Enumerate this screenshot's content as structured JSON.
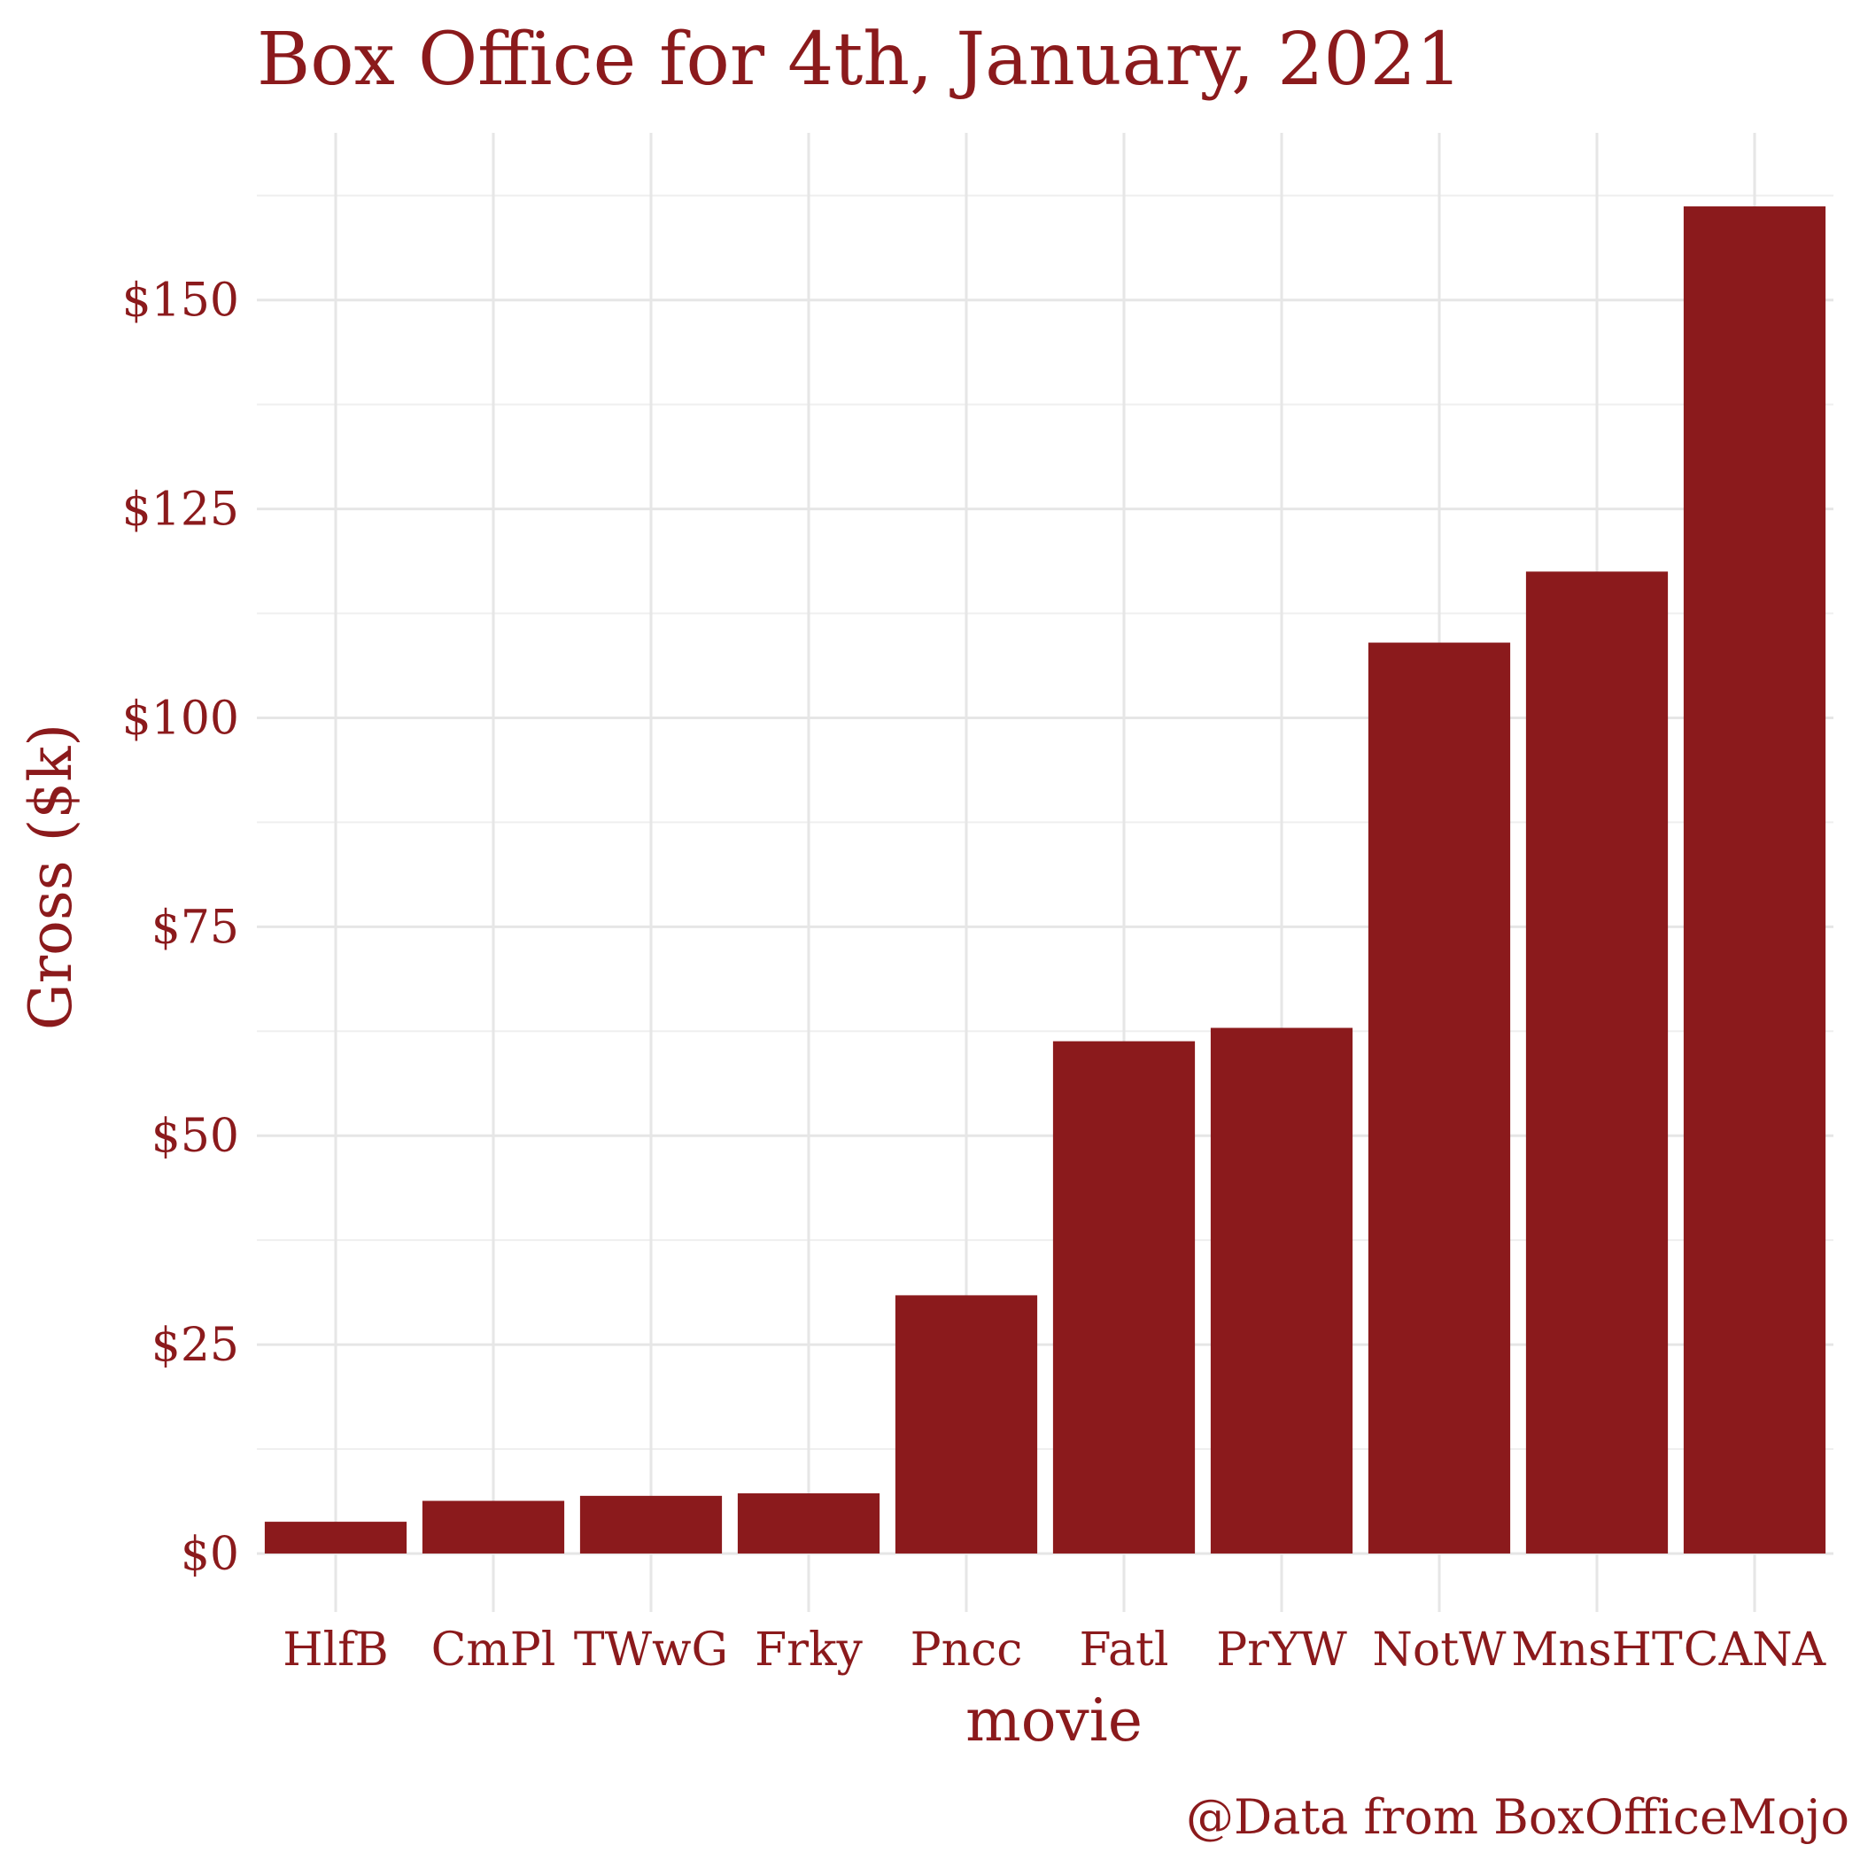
{
  "chart_data": {
    "type": "bar",
    "title": "Box Office for 4th, January, 2021",
    "xlabel": "movie",
    "ylabel": "Gross ($k)",
    "caption": "@Data from BoxOfficeMojo",
    "categories": [
      "HlfB",
      "CmPl",
      "TWwG",
      "Frky",
      "Pncc",
      "Fatl",
      "PrYW",
      "NotW",
      "MnsHT",
      "CANA"
    ],
    "values": [
      3.8,
      6.3,
      6.9,
      7.2,
      30.9,
      61.3,
      62.9,
      109.0,
      117.5,
      161.2
    ],
    "ylim": [
      -7,
      170
    ],
    "yticks": [
      0,
      25,
      50,
      75,
      100,
      125,
      150
    ],
    "ytick_labels": [
      "$0",
      "$25",
      "$50",
      "$75",
      "$100",
      "$125",
      "$150"
    ],
    "grid": true,
    "legend": "none",
    "colors": {
      "bar": "#8b1a1c",
      "text": "#8b1a1c",
      "grid": "#e6e6e6"
    }
  }
}
